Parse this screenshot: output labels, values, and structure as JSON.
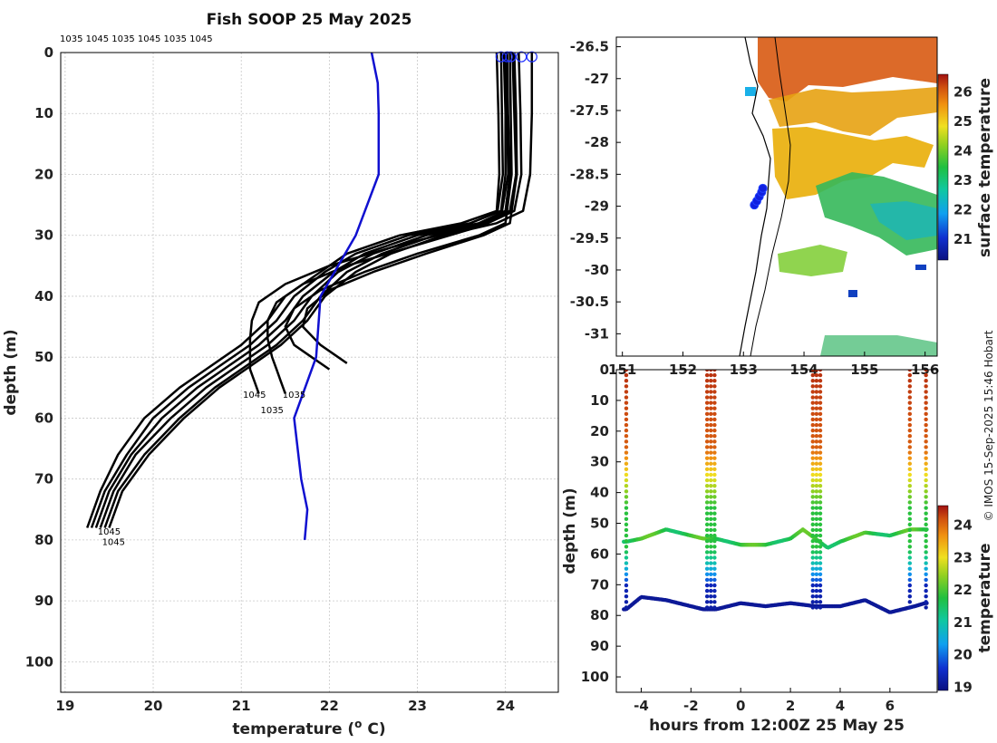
{
  "chart_data": [
    {
      "type": "line",
      "title": "Fish SOOP 25 May 2025",
      "xlabel": "temperature (",
      "xlabel_sup": "o",
      "xlabel_unit": " C)",
      "ylabel": "depth (m)",
      "xlim": [
        18.95,
        24.6
      ],
      "ylim": [
        105,
        0
      ],
      "xticks": [
        19,
        20,
        21,
        22,
        23,
        24
      ],
      "yticks": [
        0,
        10,
        20,
        30,
        40,
        50,
        60,
        70,
        80,
        90,
        100
      ],
      "top_labels": "1035 1045 1035 1045 1035 1045",
      "annotations": [
        {
          "text": "1045",
          "x": 21.15,
          "y": 56.7
        },
        {
          "text": "1035",
          "x": 21.6,
          "y": 56.7
        },
        {
          "text": "1035",
          "x": 21.35,
          "y": 59.2
        },
        {
          "text": "1045",
          "x": 19.5,
          "y": 79.1
        },
        {
          "text": "1045",
          "x": 19.55,
          "y": 80.8
        }
      ],
      "mean_profile": {
        "name": "climatology",
        "color": "#1010d0",
        "depth": [
          0,
          5,
          10,
          20,
          30,
          40,
          50,
          60,
          70,
          75,
          80
        ],
        "temperature": [
          22.48,
          22.55,
          22.56,
          22.56,
          22.3,
          21.9,
          21.85,
          21.6,
          21.68,
          21.75,
          21.72
        ]
      },
      "profiles": [
        {
          "depth": [
            0,
            10,
            20,
            26,
            28,
            30,
            33,
            36,
            40,
            44,
            48,
            52,
            55,
            60,
            66,
            72,
            78
          ],
          "temperature": [
            23.9,
            23.92,
            23.93,
            23.9,
            23.5,
            22.8,
            22.2,
            21.9,
            21.5,
            21.3,
            21.0,
            20.6,
            20.3,
            19.9,
            19.6,
            19.4,
            19.25
          ]
        },
        {
          "depth": [
            0,
            10,
            20,
            26,
            28,
            30,
            33,
            36,
            40,
            44,
            48,
            52,
            55,
            60,
            66,
            72,
            78
          ],
          "temperature": [
            23.98,
            24.0,
            24.0,
            23.95,
            23.6,
            22.9,
            22.3,
            21.95,
            21.6,
            21.4,
            21.1,
            20.7,
            20.4,
            20.0,
            19.7,
            19.45,
            19.3
          ]
        },
        {
          "depth": [
            0,
            10,
            20,
            26,
            28,
            30,
            33,
            36,
            40,
            44,
            48,
            52,
            55,
            60,
            66,
            72,
            78
          ],
          "temperature": [
            24.02,
            24.03,
            24.05,
            24.0,
            23.7,
            23.0,
            22.4,
            22.05,
            21.7,
            21.5,
            21.2,
            20.8,
            20.5,
            20.1,
            19.75,
            19.5,
            19.35
          ]
        },
        {
          "depth": [
            0,
            10,
            20,
            26,
            28,
            30,
            33,
            36,
            40,
            44,
            48,
            52,
            55,
            60,
            66,
            72,
            78
          ],
          "temperature": [
            24.08,
            24.1,
            24.12,
            24.05,
            23.75,
            23.1,
            22.5,
            22.1,
            21.8,
            21.6,
            21.3,
            20.9,
            20.6,
            20.2,
            19.8,
            19.55,
            19.4
          ]
        },
        {
          "depth": [
            0,
            10,
            20,
            26,
            28,
            30,
            33,
            36,
            40,
            44,
            48,
            52,
            55,
            60,
            66,
            72,
            78
          ],
          "temperature": [
            24.15,
            24.17,
            24.18,
            24.1,
            23.8,
            23.2,
            22.6,
            22.2,
            21.9,
            21.7,
            21.4,
            21.0,
            20.7,
            20.3,
            19.9,
            19.6,
            19.45
          ]
        },
        {
          "depth": [
            0,
            10,
            20,
            26,
            28,
            30,
            33,
            36,
            40,
            44,
            48,
            52,
            55,
            60,
            66,
            72,
            78
          ],
          "temperature": [
            24.3,
            24.3,
            24.28,
            24.2,
            23.9,
            23.3,
            22.7,
            22.3,
            21.95,
            21.75,
            21.45,
            21.05,
            20.75,
            20.35,
            19.95,
            19.65,
            19.5
          ]
        },
        {
          "depth": [
            0,
            10,
            20,
            27,
            29,
            32,
            35,
            38,
            41,
            44,
            47,
            50,
            52,
            54,
            56
          ],
          "temperature": [
            23.95,
            23.96,
            23.97,
            23.9,
            23.5,
            22.7,
            22.0,
            21.5,
            21.2,
            21.12,
            21.1,
            21.1,
            21.1,
            21.15,
            21.2
          ]
        },
        {
          "depth": [
            0,
            10,
            20,
            27,
            29,
            32,
            35,
            38,
            41,
            44,
            47,
            50,
            52,
            54,
            56
          ],
          "temperature": [
            24.0,
            24.02,
            24.03,
            23.95,
            23.6,
            22.9,
            22.2,
            21.7,
            21.4,
            21.3,
            21.3,
            21.35,
            21.4,
            21.45,
            21.5
          ]
        },
        {
          "depth": [
            0,
            10,
            20,
            28,
            30,
            33,
            36,
            39,
            42,
            45,
            48,
            50,
            52
          ],
          "temperature": [
            24.05,
            24.06,
            24.07,
            24.0,
            23.7,
            23.0,
            22.4,
            21.9,
            21.6,
            21.5,
            21.6,
            21.8,
            22.0
          ]
        },
        {
          "depth": [
            0,
            10,
            20,
            28,
            30,
            33,
            36,
            39,
            42,
            45,
            48,
            50,
            51
          ],
          "temperature": [
            24.1,
            24.12,
            24.13,
            24.05,
            23.75,
            23.1,
            22.5,
            22.0,
            21.75,
            21.7,
            21.9,
            22.1,
            22.2
          ]
        }
      ],
      "markers_at_surface": [
        23.95,
        24.02,
        24.06,
        24.18,
        24.3
      ]
    },
    {
      "type": "heatmap",
      "colorbar_label": "surface temperature",
      "colorbar_ticks": [
        21,
        22,
        23,
        24,
        25,
        26
      ],
      "colorbar_range": [
        20.3,
        26.6
      ],
      "xlim": [
        150.9,
        156.2
      ],
      "ylim": [
        -31.35,
        -26.35
      ],
      "xticks": [
        151,
        152,
        153,
        154,
        155,
        156
      ],
      "xtick_labels": [
        "151",
        "152",
        "153",
        "154",
        "155",
        "156"
      ],
      "yticks": [
        -26.5,
        -27,
        -27.5,
        -28,
        -28.5,
        -29,
        -29.5,
        -30,
        -30.5,
        -31
      ],
      "ytick_labels": [
        "-26.5",
        "-27",
        "-27.5",
        "-28",
        "-28.5",
        "-29",
        "-29.5",
        "-30",
        "-30.5",
        "-31"
      ],
      "track": {
        "lon": [
          153.18,
          153.22,
          153.26,
          153.3,
          153.32
        ],
        "lat": [
          -28.98,
          -28.92,
          -28.85,
          -28.78,
          -28.72
        ]
      }
    },
    {
      "type": "scatter",
      "xlabel": "hours from 12:00Z 25 May 25",
      "ylabel": "depth (m)",
      "colorbar_label": "temperature",
      "colorbar_ticks": [
        19,
        20,
        21,
        22,
        23,
        24
      ],
      "colorbar_range": [
        18.9,
        24.6
      ],
      "xlim": [
        -5,
        7.9
      ],
      "ylim": [
        105,
        0
      ],
      "xticks": [
        -4,
        -2,
        0,
        2,
        4,
        6
      ],
      "xtick_labels": [
        "-4",
        "-2",
        "0",
        "2",
        "4",
        "6"
      ],
      "yticks": [
        0,
        10,
        20,
        30,
        40,
        50,
        60,
        70,
        80,
        90,
        100
      ],
      "ytick_labels": [
        "0",
        "10",
        "20",
        "30",
        "40",
        "50",
        "60",
        "70",
        "80",
        "90",
        "100"
      ],
      "surface_casts_hours": [
        -4.6,
        -1.35,
        -1.2,
        -1.05,
        2.9,
        3.05,
        3.2,
        6.8,
        7.45
      ],
      "thermocline_depth": {
        "hours": [
          -4.6,
          -4.0,
          -3.0,
          -2.0,
          -1.5,
          -1.0,
          0.0,
          1.0,
          2.0,
          2.5,
          3.0,
          3.5,
          4.0,
          5.0,
          6.0,
          6.8
        ],
        "depth": [
          56,
          55,
          52,
          54,
          55,
          55,
          57,
          57,
          55,
          52,
          55,
          58,
          56,
          53,
          54,
          52
        ]
      },
      "bottom_depth": {
        "hours": [
          -4.6,
          -4.0,
          -3.0,
          -2.0,
          -1.5,
          -1.0,
          0.0,
          1.0,
          2.0,
          3.0,
          4.0,
          5.0,
          6.0,
          7.0,
          7.4
        ],
        "depth": [
          78,
          74,
          75,
          77,
          78,
          78,
          76,
          77,
          76,
          77,
          77,
          75,
          79,
          77,
          76
        ]
      }
    }
  ],
  "credit": "© IMOS 15-Sep-2025 15:46 Hobart",
  "colors": {
    "profile": "#000000",
    "mean": "#1010d0",
    "marker": "#2030ff"
  }
}
